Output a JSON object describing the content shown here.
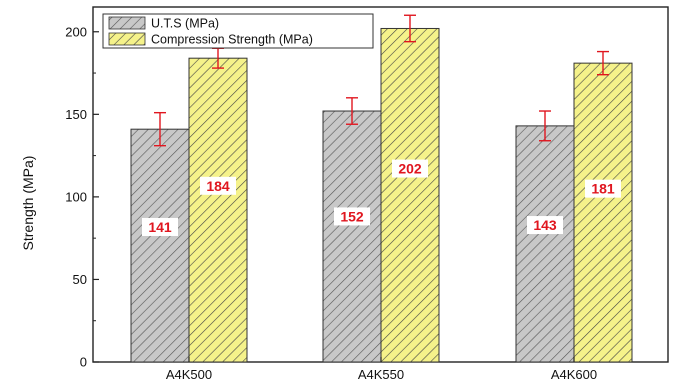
{
  "chart_data": {
    "type": "bar",
    "categories": [
      "A4K500",
      "A4K550",
      "A4K600"
    ],
    "series": [
      {
        "name": "U.T.S (MPa)",
        "values": [
          141,
          152,
          143
        ],
        "error": [
          10,
          8,
          9
        ],
        "labels": [
          "141",
          "152",
          "143"
        ],
        "fill": "#c8c8c8",
        "hatch": "#555555"
      },
      {
        "name": "Compression Strength (MPa)",
        "values": [
          184,
          202,
          181
        ],
        "error": [
          6,
          8,
          7
        ],
        "labels": [
          "184",
          "202",
          "181"
        ],
        "fill": "#f5f28a",
        "hatch": "#444444"
      }
    ],
    "ylabel": "Strength (MPa)",
    "ylim": [
      0,
      215
    ],
    "yticks": [
      "0",
      "50",
      "100",
      "150",
      "200"
    ],
    "grid": false,
    "legend": "top-left",
    "error_bar_color": "#e0161f",
    "data_label_color": "#e0161f"
  }
}
